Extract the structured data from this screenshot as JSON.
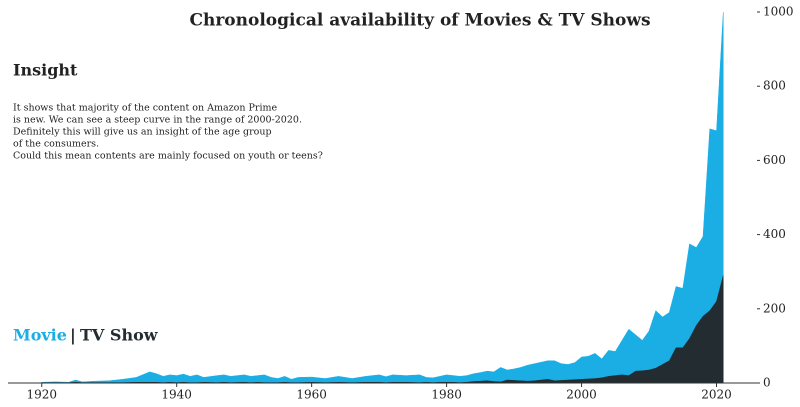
{
  "chart_data": {
    "type": "area",
    "title": "Chronological availability of Movies & TV Shows",
    "annotations": {
      "heading": "Insight",
      "lines": [
        "It shows that majority of the content on Amazon Prime",
        "is new. We can see a steep curve in the range of 2000-2020.",
        "Definitely this will give us an insight of the age group",
        "of the consumers.",
        "Could this mean contents are mainly focused on youth or teens?"
      ]
    },
    "legend_separator": "|",
    "x": [
      1920,
      1922,
      1924,
      1925,
      1926,
      1928,
      1930,
      1932,
      1934,
      1936,
      1937,
      1938,
      1939,
      1940,
      1941,
      1942,
      1943,
      1944,
      1946,
      1947,
      1948,
      1950,
      1951,
      1952,
      1953,
      1954,
      1955,
      1956,
      1957,
      1958,
      1960,
      1962,
      1964,
      1966,
      1968,
      1970,
      1971,
      1972,
      1974,
      1976,
      1977,
      1978,
      1979,
      1980,
      1981,
      1982,
      1983,
      1984,
      1985,
      1986,
      1987,
      1988,
      1989,
      1990,
      1991,
      1992,
      1993,
      1994,
      1995,
      1996,
      1997,
      1998,
      1999,
      2000,
      2001,
      2002,
      2003,
      2004,
      2005,
      2006,
      2007,
      2008,
      2009,
      2010,
      2011,
      2012,
      2013,
      2014,
      2015,
      2016,
      2017,
      2018,
      2019,
      2020,
      2021
    ],
    "series": [
      {
        "name": "Movie",
        "color": "#1aaee5",
        "values": [
          2,
          3,
          2,
          8,
          3,
          5,
          6,
          10,
          15,
          30,
          25,
          18,
          22,
          20,
          24,
          18,
          22,
          15,
          20,
          22,
          18,
          22,
          18,
          20,
          22,
          15,
          12,
          18,
          10,
          15,
          16,
          12,
          18,
          12,
          18,
          22,
          17,
          22,
          20,
          22,
          15,
          14,
          18,
          22,
          20,
          18,
          20,
          25,
          28,
          32,
          30,
          42,
          35,
          38,
          42,
          48,
          52,
          56,
          60,
          60,
          52,
          50,
          55,
          70,
          72,
          80,
          65,
          88,
          85,
          115,
          145,
          130,
          115,
          140,
          195,
          178,
          190,
          260,
          255,
          375,
          365,
          395,
          685,
          680,
          1000
        ]
      },
      {
        "name": "TV Show",
        "color": "#222c31",
        "values": [
          1,
          1,
          1,
          2,
          1,
          1,
          1,
          1,
          2,
          2,
          2,
          1,
          2,
          1,
          2,
          1,
          1,
          2,
          1,
          2,
          1,
          2,
          1,
          2,
          1,
          1,
          1,
          2,
          1,
          1,
          2,
          1,
          2,
          1,
          2,
          2,
          1,
          2,
          2,
          1,
          2,
          1,
          2,
          2,
          2,
          1,
          2,
          4,
          5,
          6,
          4,
          3,
          8,
          7,
          6,
          5,
          6,
          8,
          10,
          6,
          7,
          8,
          9,
          10,
          11,
          12,
          14,
          18,
          20,
          22,
          20,
          32,
          33,
          35,
          40,
          50,
          60,
          95,
          95,
          120,
          155,
          180,
          195,
          220,
          290
        ]
      }
    ],
    "xlim": [
      1915,
      2026
    ],
    "xticks": [
      1920,
      1940,
      1960,
      1980,
      2000,
      2020
    ],
    "ylim": [
      0,
      1000
    ],
    "yticks": [
      0,
      200,
      400,
      600,
      800,
      1000
    ],
    "grid": false
  }
}
